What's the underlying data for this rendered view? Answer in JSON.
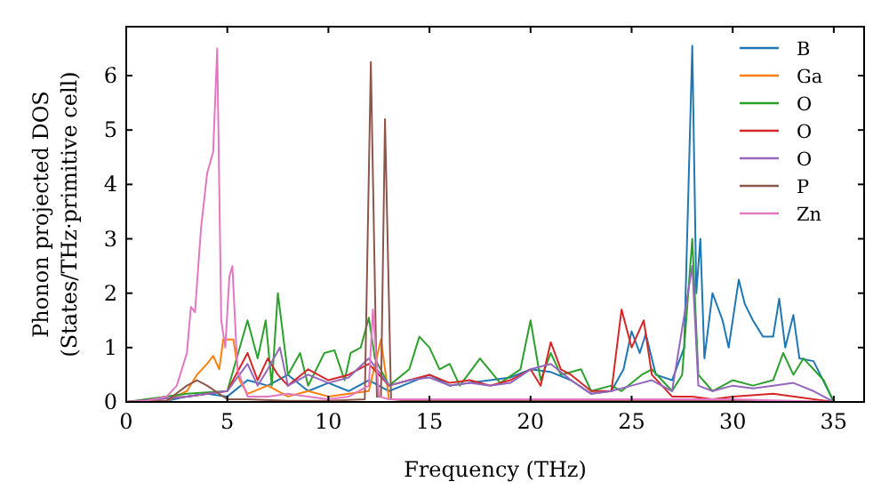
{
  "chart_data": {
    "type": "line",
    "xlabel": "Frequency (THz)",
    "ylabel": "Phonon projected DOS\n(States/THz·primitive cell)",
    "xlim": [
      0,
      36.5
    ],
    "ylim": [
      0,
      6.9
    ],
    "xticks": [
      0,
      5,
      10,
      15,
      20,
      25,
      30,
      35
    ],
    "yticks": [
      0,
      1,
      2,
      3,
      4,
      5,
      6
    ],
    "grid": false,
    "legend": "top right",
    "line_style": "solid",
    "series": [
      {
        "name": "B",
        "color": "#1f77b4",
        "x": [
          0,
          2,
          3,
          4,
          5,
          6,
          7,
          8,
          9,
          10,
          11,
          12,
          13,
          14,
          15,
          16,
          17,
          18,
          19,
          20,
          21,
          22,
          23,
          24,
          24.6,
          25,
          25.4,
          25.7,
          26.2,
          27,
          27.6,
          28,
          28.2,
          28.4,
          28.6,
          29,
          29.5,
          29.8,
          30.3,
          30.6,
          31,
          31.5,
          32,
          32.3,
          32.6,
          33,
          33.3,
          34,
          34.6,
          35
        ],
        "values": [
          0,
          0.02,
          0.1,
          0.15,
          0.1,
          0.4,
          0.3,
          0.5,
          0.2,
          0.35,
          0.2,
          0.4,
          0.2,
          0.35,
          0.5,
          0.3,
          0.35,
          0.4,
          0.45,
          0.6,
          0.55,
          0.4,
          0.15,
          0.2,
          0.6,
          1.3,
          0.9,
          1.25,
          0.5,
          0.4,
          1.0,
          6.55,
          2.0,
          3.0,
          0.8,
          2.0,
          1.5,
          1.0,
          2.25,
          1.8,
          1.5,
          1.2,
          1.2,
          1.9,
          1.0,
          1.6,
          0.8,
          0.75,
          0.3,
          0
        ]
      },
      {
        "name": "Ga",
        "color": "#ff7f0e",
        "x": [
          0,
          2,
          3,
          3.5,
          4,
          4.3,
          4.6,
          4.8,
          5.3,
          5.6,
          6,
          7,
          8,
          9,
          10,
          11,
          12,
          12.6,
          13
        ],
        "values": [
          0,
          0.02,
          0.2,
          0.5,
          0.7,
          0.85,
          0.6,
          1.15,
          1.15,
          0.4,
          0.15,
          0.3,
          0.1,
          0.2,
          0.1,
          0.15,
          0.2,
          1.15,
          0.05
        ]
      },
      {
        "name": "O",
        "color": "#2ca02c",
        "x": [
          0,
          3,
          5,
          6,
          6.5,
          6.9,
          7.2,
          7.5,
          8,
          8.6,
          9,
          9.8,
          10.3,
          10.8,
          11.1,
          11.6,
          12,
          12.3,
          13,
          14,
          14.5,
          15,
          15.5,
          16,
          16.5,
          17,
          17.5,
          18.5,
          19.5,
          20,
          20.5,
          21,
          21.5,
          22.5,
          23,
          24,
          24.5,
          25.5,
          26,
          27,
          27.5,
          28,
          28.3,
          29,
          30,
          31,
          32,
          32.5,
          33,
          33.5,
          34.5,
          35
        ],
        "values": [
          0,
          0.15,
          0.2,
          1.5,
          0.8,
          1.5,
          0.3,
          2.0,
          0.5,
          0.9,
          0.3,
          0.9,
          0.95,
          0.4,
          0.9,
          1.0,
          1.55,
          0.8,
          0.3,
          0.6,
          1.2,
          1.0,
          0.6,
          0.7,
          0.3,
          0.55,
          0.8,
          0.35,
          0.6,
          1.5,
          0.4,
          0.9,
          0.5,
          0.6,
          0.2,
          0.3,
          0.2,
          0.5,
          0.6,
          0.2,
          0.5,
          3.0,
          0.5,
          0.2,
          0.4,
          0.3,
          0.4,
          0.9,
          0.5,
          0.8,
          0.4,
          0
        ]
      },
      {
        "name": "O",
        "color": "#d62728",
        "x": [
          0,
          3,
          5,
          6,
          6.5,
          7,
          7.5,
          8,
          9,
          10,
          11,
          12,
          13,
          14,
          15,
          16,
          17,
          18,
          19,
          20,
          20.5,
          21,
          21.5,
          22,
          23,
          24,
          24.5,
          25,
          25.6,
          26,
          27,
          28,
          29,
          30,
          32,
          35
        ],
        "values": [
          0,
          0.1,
          0.2,
          0.9,
          0.4,
          0.8,
          0.5,
          0.3,
          0.6,
          0.4,
          0.5,
          0.7,
          0.3,
          0.4,
          0.5,
          0.35,
          0.4,
          0.3,
          0.4,
          0.6,
          0.3,
          1.1,
          0.6,
          0.5,
          0.2,
          0.2,
          1.7,
          1.0,
          1.5,
          0.5,
          0.1,
          0.1,
          0.05,
          0.1,
          0.15,
          0
        ]
      },
      {
        "name": "O",
        "color": "#9467bd",
        "x": [
          0,
          3,
          5,
          6,
          6.5,
          7,
          7.6,
          8,
          9,
          10,
          11,
          12,
          13,
          14,
          15,
          16,
          17,
          18,
          19,
          20,
          21,
          22,
          23,
          24,
          25,
          26,
          27,
          28,
          28.3,
          29,
          30,
          31,
          32,
          33,
          34,
          35
        ],
        "values": [
          0,
          0.1,
          0.2,
          0.7,
          0.3,
          0.6,
          1.0,
          0.3,
          0.5,
          0.35,
          0.45,
          0.8,
          0.3,
          0.4,
          0.45,
          0.3,
          0.35,
          0.3,
          0.35,
          0.6,
          0.7,
          0.4,
          0.15,
          0.2,
          0.3,
          0.4,
          0.2,
          2.5,
          0.3,
          0.2,
          0.3,
          0.25,
          0.3,
          0.35,
          0.2,
          0
        ]
      },
      {
        "name": "P",
        "color": "#8c564b",
        "x": [
          0,
          2,
          3,
          3.5,
          4,
          5,
          6,
          8,
          10,
          11.8,
          12.1,
          12.4,
          12.6,
          12.8,
          13.1,
          14,
          20,
          30,
          35
        ],
        "values": [
          0,
          0.02,
          0.3,
          0.4,
          0.3,
          0.05,
          0.05,
          0.02,
          0.02,
          0.05,
          6.25,
          0.1,
          0.1,
          5.2,
          0.05,
          0.02,
          0.02,
          0.02,
          0
        ]
      },
      {
        "name": "Zn",
        "color": "#e377c2",
        "x": [
          0,
          1,
          2,
          2.5,
          3,
          3.2,
          3.4,
          3.7,
          4.0,
          4.3,
          4.5,
          4.7,
          4.9,
          5.1,
          5.25,
          5.5,
          6,
          7,
          8,
          9,
          10,
          11,
          12,
          12.2,
          12.5,
          13,
          15,
          20,
          25,
          30,
          35
        ],
        "values": [
          0,
          0.02,
          0.1,
          0.3,
          0.9,
          1.75,
          1.65,
          3.2,
          4.2,
          4.6,
          6.5,
          1.5,
          1.0,
          2.3,
          2.5,
          0.6,
          0.1,
          0.1,
          0.15,
          0.1,
          0.05,
          0.1,
          0.3,
          1.7,
          0.1,
          0.05,
          0.05,
          0.05,
          0.05,
          0.05,
          0
        ]
      }
    ]
  }
}
